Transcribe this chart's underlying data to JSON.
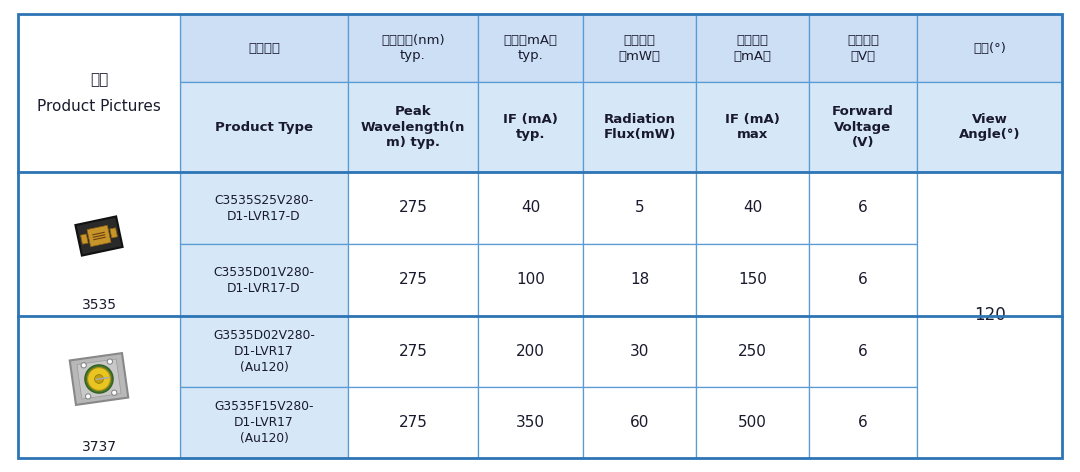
{
  "col0_header_zh": "图片",
  "col0_header_en": "Product Pictures",
  "header_row1": [
    "产品型号",
    "峰值波长(nm)\ntyp.",
    "电流（mA）\ntyp.",
    "辐射通量\n（mW）",
    "最大电流\n（mA）",
    "正向电压\n（V）",
    "角度(°)"
  ],
  "header_row2": [
    "Product Type",
    "Peak\nWavelength(n\nm) typ.",
    "IF (mA)\ntyp.",
    "Radiation\nFlux(mW)",
    "IF (mA)\nmax",
    "Forward\nVoltage\n(V)",
    "View\nAngle(°)"
  ],
  "rows": [
    [
      "C3535S25V280-\nD1-LVR17-D",
      "275",
      "40",
      "5",
      "40",
      "6"
    ],
    [
      "C3535D01V280-\nD1-LVR17-D",
      "275",
      "100",
      "18",
      "150",
      "6"
    ],
    [
      "G3535D02V280-\nD1-LVR17\n(Au120)",
      "275",
      "200",
      "30",
      "250",
      "6"
    ],
    [
      "G3535F15V280-\nD1-LVR17\n(Au120)",
      "275",
      "350",
      "60",
      "500",
      "6"
    ]
  ],
  "angle_value": "120",
  "group_labels": [
    "3535",
    "3737"
  ],
  "col0_bg": "#ffffff",
  "header1_bg": "#ccdff5",
  "header2_bg": "#d6e8f7",
  "prod_col_bg": "#d6e8f7",
  "data_bg": "#ffffff",
  "border_color": "#5b9bd5",
  "outer_border_color": "#2e75b6",
  "text_color": "#1a1a2e",
  "bold_color": "#1a1a2e",
  "angle_color": "#1a1a2e",
  "figsize": [
    10.8,
    4.72
  ],
  "dpi": 100
}
